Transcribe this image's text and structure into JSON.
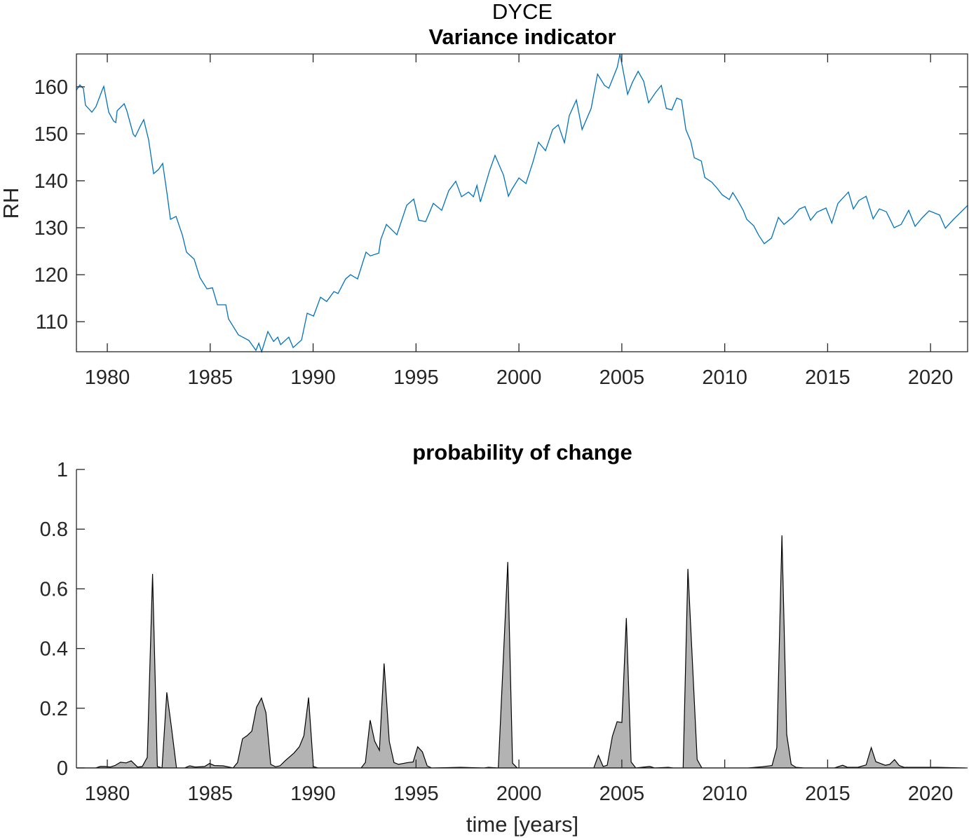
{
  "chart_data": [
    {
      "type": "line",
      "title": "DYCE",
      "subtitle": "Variance indicator",
      "xlabel": "",
      "ylabel": "RH",
      "xlim": [
        1978.5,
        2021.8
      ],
      "ylim": [
        103.6,
        167.0
      ],
      "xticks": [
        1980,
        1985,
        1990,
        1995,
        2000,
        2005,
        2010,
        2015,
        2020
      ],
      "yticks": [
        110,
        120,
        130,
        140,
        150,
        160
      ],
      "grid": false,
      "line_color": "#0072BD",
      "series": [
        {
          "name": "RH",
          "x": [
            1978.5,
            1978.67,
            1978.84,
            1978.94,
            1979.25,
            1979.45,
            1979.76,
            1979.83,
            1980.07,
            1980.31,
            1980.41,
            1980.48,
            1980.82,
            1980.95,
            1981.26,
            1981.36,
            1981.6,
            1981.77,
            1982.01,
            1982.25,
            1982.49,
            1982.69,
            1982.9,
            1983.07,
            1983.34,
            1983.65,
            1983.85,
            1984.22,
            1984.5,
            1984.84,
            1985.11,
            1985.35,
            1985.76,
            1985.89,
            1986.37,
            1986.88,
            1987.22,
            1987.36,
            1987.5,
            1987.8,
            1988.08,
            1988.28,
            1988.42,
            1988.82,
            1989.03,
            1989.44,
            1989.71,
            1990.02,
            1990.36,
            1990.66,
            1991.01,
            1991.21,
            1991.58,
            1991.82,
            1992.16,
            1992.57,
            1992.78,
            1993.19,
            1993.29,
            1993.56,
            1994.07,
            1994.55,
            1994.89,
            1995.13,
            1995.47,
            1995.84,
            1996.25,
            1996.59,
            1996.93,
            1997.21,
            1997.55,
            1997.79,
            1997.96,
            1998.13,
            1998.57,
            1998.84,
            1999.25,
            1999.49,
            1999.66,
            2000.0,
            2000.34,
            2000.68,
            2000.95,
            2001.29,
            2001.64,
            2001.91,
            2002.21,
            2002.45,
            2002.79,
            2003.07,
            2003.51,
            2003.82,
            2004.16,
            2004.37,
            2004.78,
            2004.91,
            2005.28,
            2005.52,
            2005.79,
            2006.06,
            2006.3,
            2006.64,
            2006.92,
            2007.16,
            2007.43,
            2007.67,
            2007.9,
            2008.11,
            2008.35,
            2008.52,
            2008.86,
            2009.03,
            2009.37,
            2009.61,
            2009.88,
            2010.22,
            2010.39,
            2010.63,
            2010.9,
            2011.07,
            2011.41,
            2011.65,
            2011.92,
            2012.27,
            2012.61,
            2012.88,
            2013.29,
            2013.63,
            2013.9,
            2014.17,
            2014.48,
            2014.92,
            2015.2,
            2015.5,
            2016.01,
            2016.25,
            2016.52,
            2016.87,
            2017.21,
            2017.51,
            2017.85,
            2018.23,
            2018.57,
            2018.94,
            2019.25,
            2019.59,
            2019.93,
            2020.44,
            2020.72,
            2021.12,
            2021.81
          ],
          "y": [
            159.3,
            160.4,
            159.6,
            156.1,
            154.6,
            155.8,
            159.4,
            160.1,
            154.6,
            152.7,
            152.4,
            154.9,
            156.4,
            154.9,
            149.9,
            149.4,
            151.6,
            153.0,
            148.7,
            141.5,
            142.4,
            143.7,
            137.3,
            131.8,
            132.4,
            128.4,
            124.8,
            123.3,
            119.4,
            117.0,
            117.2,
            113.6,
            113.6,
            110.6,
            107.2,
            106.0,
            103.9,
            105.4,
            103.6,
            107.9,
            105.8,
            106.7,
            105.1,
            106.7,
            104.5,
            106.1,
            111.8,
            111.2,
            115.2,
            114.3,
            116.4,
            116.0,
            119.1,
            120.0,
            119.1,
            124.8,
            124.0,
            124.6,
            127.5,
            130.7,
            128.5,
            134.8,
            136.1,
            131.6,
            131.3,
            135.2,
            133.7,
            137.9,
            139.9,
            136.6,
            137.6,
            136.6,
            139.0,
            135.5,
            142.1,
            145.4,
            141.2,
            136.7,
            138.2,
            140.6,
            139.4,
            144.0,
            148.2,
            146.4,
            150.9,
            151.9,
            148.1,
            153.9,
            157.2,
            150.9,
            155.4,
            162.7,
            160.3,
            159.7,
            164.2,
            167.0,
            158.4,
            161.0,
            163.3,
            161.2,
            156.6,
            158.8,
            160.3,
            155.4,
            155.1,
            157.6,
            157.2,
            150.9,
            148.4,
            144.9,
            144.2,
            140.7,
            139.7,
            138.5,
            137.0,
            136.0,
            137.5,
            135.8,
            133.7,
            131.8,
            130.4,
            128.4,
            126.6,
            127.8,
            132.2,
            130.7,
            132.2,
            134.0,
            134.5,
            131.6,
            133.3,
            134.2,
            131.0,
            135.2,
            137.6,
            134.0,
            135.8,
            136.7,
            131.9,
            134.0,
            133.4,
            130.0,
            130.7,
            133.7,
            130.3,
            132.1,
            133.6,
            132.7,
            129.9,
            131.8,
            134.8
          ]
        }
      ]
    },
    {
      "type": "area",
      "title": "probability of change",
      "xlabel": "time [years]",
      "ylabel": "",
      "xlim": [
        1978.5,
        2021.8
      ],
      "ylim": [
        0,
        1
      ],
      "xticks": [
        1980,
        1985,
        1990,
        1995,
        2000,
        2005,
        2010,
        2015,
        2020
      ],
      "yticks": [
        0,
        0.2,
        0.4,
        0.6,
        0.8,
        1
      ],
      "grid": false,
      "fill_color": "#B3B3B3",
      "edge_color": "#000000",
      "series": [
        {
          "name": "probability of change",
          "x": [
            1978.5,
            1979.44,
            1979.66,
            1979.9,
            1980.14,
            1980.37,
            1980.64,
            1980.92,
            1981.16,
            1981.47,
            1981.7,
            1981.94,
            1982.2,
            1982.43,
            1982.66,
            1982.89,
            1983.11,
            1983.36,
            1983.75,
            1984.01,
            1984.27,
            1984.73,
            1984.97,
            1985.2,
            1985.63,
            1986.11,
            1986.33,
            1986.57,
            1986.79,
            1987.02,
            1987.25,
            1987.49,
            1987.71,
            1987.94,
            1988.17,
            1988.39,
            1988.64,
            1989.07,
            1989.33,
            1989.55,
            1989.78,
            1990.01,
            1990.23,
            1992.33,
            1992.54,
            1992.77,
            1992.99,
            1993.22,
            1993.45,
            1993.7,
            1993.93,
            1994.15,
            1994.61,
            1994.86,
            1995.08,
            1995.31,
            1995.54,
            1995.76,
            1997.16,
            1998.3,
            1998.52,
            1999.0,
            1999.46,
            1999.69,
            1999.92,
            2003.64,
            2003.86,
            2004.09,
            2004.29,
            2004.54,
            2004.77,
            2005.0,
            2005.22,
            2005.45,
            2005.68,
            2006.36,
            2006.59,
            2007.26,
            2007.5,
            2007.98,
            2008.21,
            2008.66,
            2008.89,
            2011.13,
            2011.81,
            2012.3,
            2012.53,
            2012.78,
            2013.01,
            2013.23,
            2013.46,
            2013.86,
            2015.33,
            2015.73,
            2015.96,
            2016.47,
            2016.87,
            2017.12,
            2017.34,
            2017.8,
            2018.02,
            2018.25,
            2018.48,
            2018.71,
            2019.31,
            2020.33,
            2021.69
          ],
          "y": [
            0,
            0,
            0.005,
            0.005,
            0.003,
            0.008,
            0.019,
            0.017,
            0.024,
            0.003,
            0.005,
            0.035,
            0.65,
            0.005,
            0,
            0.253,
            0.14,
            0,
            0,
            0.007,
            0.003,
            0.005,
            0.015,
            0.008,
            0.007,
            0,
            0.018,
            0.098,
            0.108,
            0.123,
            0.203,
            0.234,
            0.185,
            0.012,
            0.004,
            0.007,
            0.024,
            0.05,
            0.071,
            0.108,
            0.236,
            0.005,
            0,
            0,
            0.018,
            0.16,
            0.09,
            0.059,
            0.35,
            0.089,
            0.018,
            0.012,
            0.018,
            0.02,
            0.071,
            0.054,
            0.007,
            0,
            0.002,
            0,
            0.002,
            0,
            0.69,
            0.016,
            0,
            0,
            0.042,
            0.005,
            0.009,
            0.106,
            0.155,
            0.152,
            0.502,
            0.02,
            0,
            0.005,
            0,
            0.002,
            0,
            0,
            0.667,
            0.028,
            0,
            0,
            0.004,
            0.008,
            0.068,
            0.779,
            0.113,
            0.012,
            0.002,
            0,
            0,
            0.009,
            0.002,
            0.002,
            0.01,
            0.068,
            0.021,
            0.009,
            0.012,
            0.028,
            0.008,
            0.002,
            0.002,
            0.002,
            0
          ]
        }
      ]
    }
  ]
}
